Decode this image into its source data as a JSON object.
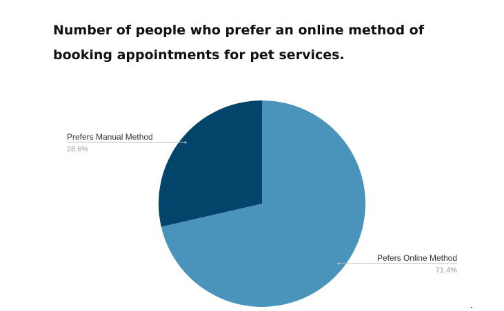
{
  "title_lines": [
    "Number of people who prefer an online method of",
    "booking appointments for pet services."
  ],
  "chart_data": {
    "type": "pie",
    "title": "Number of people who prefer an online method of booking appointments for pet services.",
    "slices": [
      {
        "label": "Pefers Online Method",
        "value": 71.4,
        "value_label": "71.4%",
        "color": "#4a93bb"
      },
      {
        "label": "Prefers Manual Method",
        "value": 28.6,
        "value_label": "28.6%",
        "color": "#03456a"
      }
    ],
    "start": "12 o'clock",
    "direction": "clockwise",
    "legend": "none",
    "labels": "callout lines"
  }
}
